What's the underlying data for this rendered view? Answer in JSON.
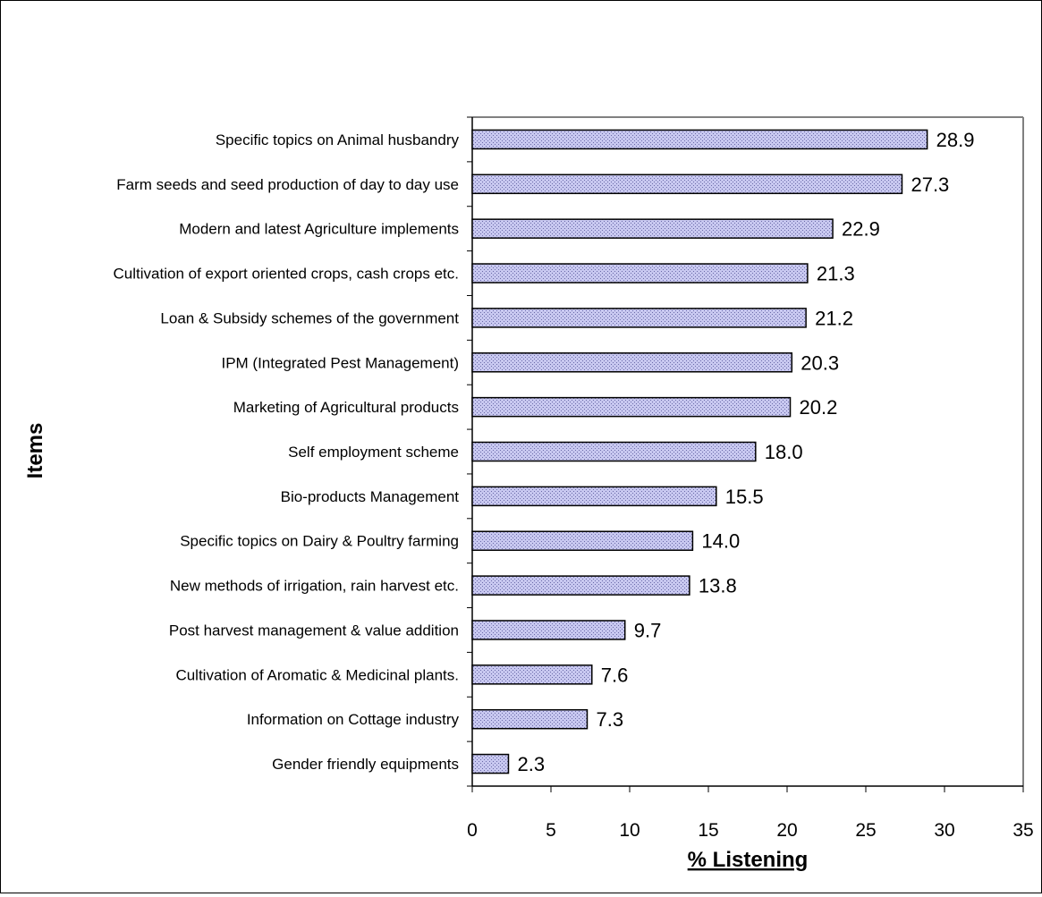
{
  "chart_data": {
    "type": "bar",
    "orientation": "horizontal",
    "categories": [
      "Specific topics on Animal husbandry",
      "Farm seeds and seed production of day to day use",
      "Modern and latest Agriculture implements",
      "Cultivation of export oriented crops, cash crops etc.",
      "Loan & Subsidy schemes of the government",
      "IPM (Integrated Pest Management)",
      "Marketing of Agricultural products",
      "Self employment scheme",
      "Bio-products Management",
      "Specific topics on Dairy & Poultry farming",
      "New methods of irrigation, rain harvest etc.",
      "Post harvest management & value addition",
      "Cultivation of Aromatic & Medicinal plants.",
      "Information on Cottage industry",
      "Gender friendly equipments"
    ],
    "values": [
      28.9,
      27.3,
      22.9,
      21.3,
      21.2,
      20.3,
      20.2,
      18.0,
      15.5,
      14.0,
      13.8,
      9.7,
      7.6,
      7.3,
      2.3
    ],
    "data_labels": [
      "28.9",
      "27.3",
      "22.9",
      "21.3",
      "21.2",
      "20.3",
      "20.2",
      "18.0",
      "15.5",
      "14.0",
      "13.8",
      "9.7",
      "7.6",
      "7.3",
      "2.3"
    ],
    "xlabel": "% Listening",
    "ylabel": "Items",
    "xlim": [
      0,
      35
    ],
    "xticks": [
      "0",
      "5",
      "10",
      "15",
      "20",
      "25",
      "30",
      "35"
    ],
    "grid": false,
    "legend": "none",
    "bar_color": "#c8c8f0"
  }
}
